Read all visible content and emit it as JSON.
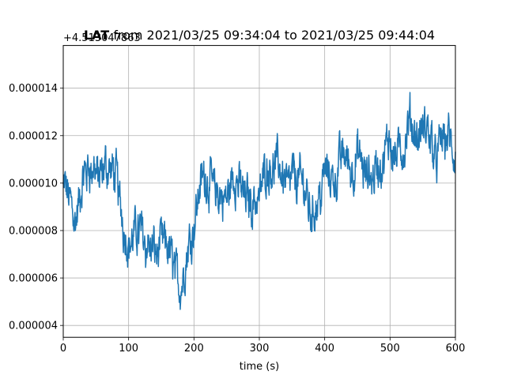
{
  "chart_data": {
    "type": "line",
    "title_prefix": "LAT",
    "title_rest": " from 2021/03/25 09:34:04 to 2021/03/25 09:44:04",
    "offset_text": "+4.513047863",
    "xlabel": "time (s)",
    "ylabel": "",
    "xlim": [
      0,
      600
    ],
    "ylim": [
      3.5e-06,
      1.58e-05
    ],
    "x_ticks": [
      0,
      100,
      200,
      300,
      400,
      500,
      600
    ],
    "x_tick_labels": [
      "0",
      "100",
      "200",
      "300",
      "400",
      "500",
      "600"
    ],
    "y_ticks": [
      4e-06,
      6e-06,
      8e-06,
      1e-05,
      1.2e-05,
      1.4e-05
    ],
    "y_tick_labels": [
      "0.000004",
      "0.000006",
      "0.000008",
      "0.000010",
      "0.000012",
      "0.000014"
    ],
    "grid": true,
    "line_color": "#1f77b4",
    "series": [
      {
        "x": [
          0,
          10,
          20,
          30,
          40,
          50,
          60,
          70,
          80,
          90,
          100,
          110,
          120,
          130,
          140,
          150,
          160,
          170,
          180,
          190,
          200,
          210,
          220,
          230,
          240,
          250,
          260,
          270,
          280,
          290,
          300,
          310,
          320,
          330,
          340,
          350,
          360,
          370,
          380,
          390,
          400,
          410,
          420,
          430,
          440,
          450,
          460,
          470,
          480,
          490,
          500,
          510,
          520,
          530,
          540,
          550,
          560,
          570,
          580,
          590,
          600
        ],
        "values": [
          9.8e-06,
          9.2e-06,
          8.8e-06,
          9.7e-06,
          1.06e-05,
          1.04e-05,
          9.9e-06,
          1.05e-05,
          1.01e-05,
          8.7e-06,
          7.7e-06,
          7.8e-06,
          8.2e-06,
          7.8e-06,
          7.1e-06,
          7.3e-06,
          7e-06,
          6.4e-06,
          5.8e-06,
          7.2e-06,
          8.7e-06,
          1.03e-05,
          1.04e-05,
          9.8e-06,
          9.3e-06,
          9.1e-06,
          1.02e-05,
          9.8e-06,
          9.4e-06,
          9.4e-06,
          9.6e-06,
          1.09e-05,
          1.11e-05,
          1.07e-05,
          1.03e-05,
          1.04e-05,
          1.02e-05,
          9.7e-06,
          8.9e-06,
          9.5e-06,
          1.07e-05,
          1.02e-05,
          1.06e-05,
          1.14e-05,
          1.07e-05,
          1.12e-05,
          1.02e-05,
          9.8e-06,
          1.08e-05,
          1.05e-05,
          1.18e-05,
          1.15e-05,
          1.13e-05,
          1.2e-05,
          1.17e-05,
          1.19e-05,
          1.18e-05,
          1.13e-05,
          1.18e-05,
          1.2e-05,
          1.04e-05
        ]
      }
    ]
  }
}
